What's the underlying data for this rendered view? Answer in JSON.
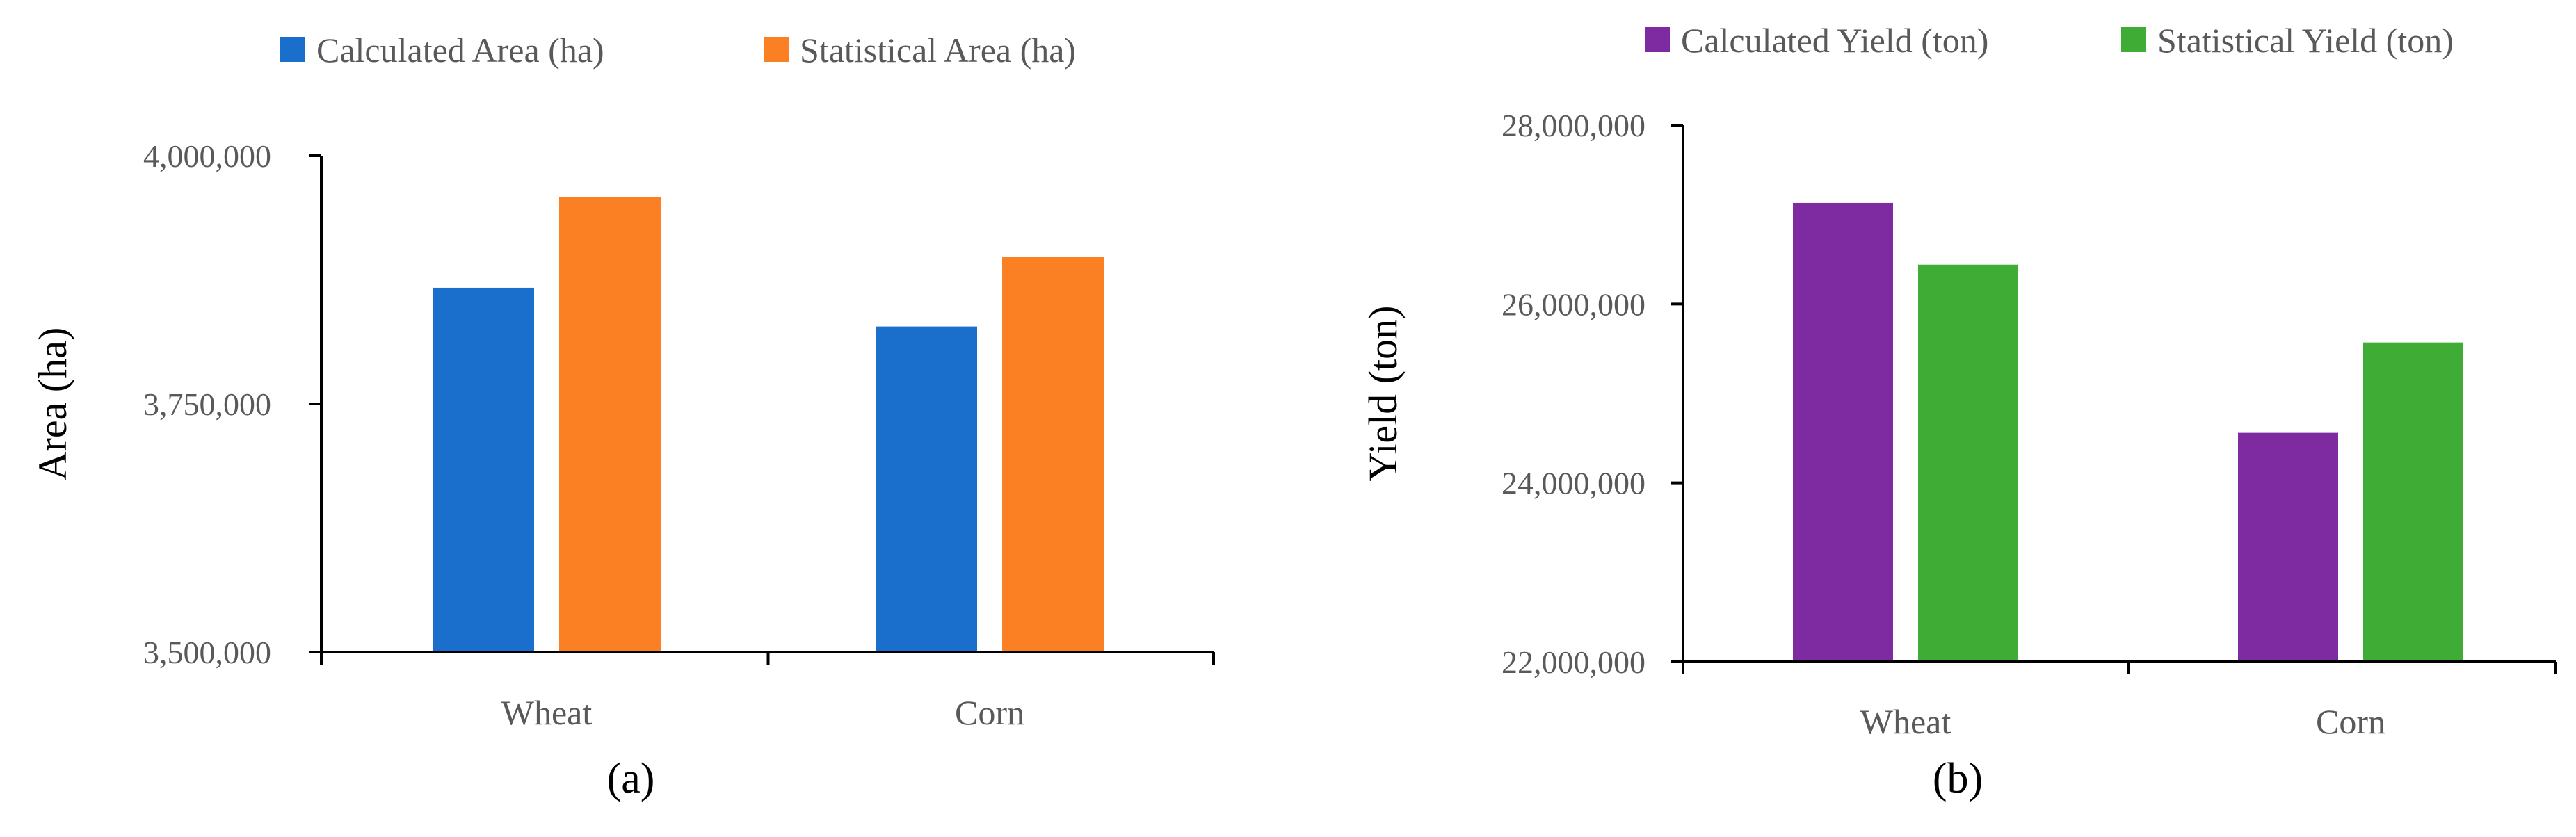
{
  "chart_data": [
    {
      "type": "bar",
      "panel_label": "(a)",
      "categories": [
        "Wheat",
        "Corn"
      ],
      "series": [
        {
          "name": "Calculated  Area (ha)",
          "color": "#1a6fcc",
          "values": [
            3867000,
            3828000
          ]
        },
        {
          "name": "Statistical  Area (ha)",
          "color": "#fb8023",
          "values": [
            3958000,
            3898000
          ]
        }
      ],
      "ylabel": "Area (ha)",
      "xlabel": "",
      "ylim": [
        3500000,
        4000000
      ],
      "yticks": [
        3500000,
        3750000,
        4000000
      ],
      "ytick_labels": [
        "3,500,000",
        "3,750,000",
        "4,000,000"
      ],
      "legend": "top",
      "grid": false
    },
    {
      "type": "bar",
      "panel_label": "(b)",
      "categories": [
        "Wheat",
        "Corn"
      ],
      "series": [
        {
          "name": "Calculated Yield (ton)",
          "color": "#7e2ba1",
          "values": [
            27130000,
            24560000
          ]
        },
        {
          "name": "Statistical  Yield (ton)",
          "color": "#3fac36",
          "values": [
            26440000,
            25570000
          ]
        }
      ],
      "ylabel": "Yield (ton)",
      "xlabel": "",
      "ylim": [
        22000000,
        28000000
      ],
      "yticks": [
        22000000,
        24000000,
        26000000,
        28000000
      ],
      "ytick_labels": [
        "22,000,000",
        "24,000,000",
        "26,000,000",
        "28,000,000"
      ],
      "legend": "top",
      "grid": false
    }
  ]
}
